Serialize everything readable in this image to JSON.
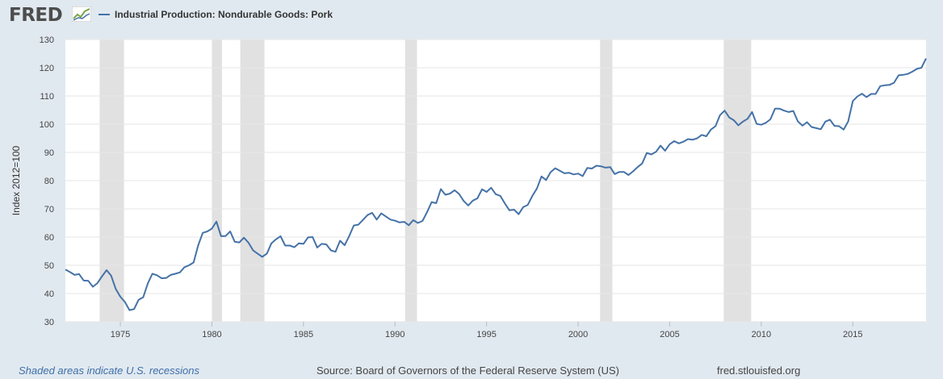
{
  "logo": {
    "text": "FRED"
  },
  "legend": {
    "label": "Industrial Production: Nondurable Goods: Pork",
    "color": "#4572a7"
  },
  "footer": {
    "recession_note": "Shaded areas indicate U.S. recessions",
    "source": "Source: Board of Governors of the Federal Reserve System (US)",
    "url": "fred.stlouisfed.org"
  },
  "chart_data": {
    "type": "line",
    "title": "",
    "xlabel": "",
    "ylabel": "Index 2012=100",
    "xlim": [
      1972.0,
      2019.0
    ],
    "ylim": [
      30,
      130
    ],
    "grid": true,
    "legend_position": "top-left",
    "x_ticks": [
      1975,
      1980,
      1985,
      1990,
      1995,
      2000,
      2005,
      2010,
      2015
    ],
    "y_ticks": [
      30,
      40,
      50,
      60,
      70,
      80,
      90,
      100,
      110,
      120,
      130
    ],
    "recessions": [
      [
        1973.87,
        1975.2
      ],
      [
        1980.0,
        1980.55
      ],
      [
        1981.55,
        1982.87
      ],
      [
        1990.55,
        1991.2
      ],
      [
        2001.2,
        2001.87
      ],
      [
        2007.95,
        2009.45
      ]
    ],
    "series": [
      {
        "color": "#4572a7",
        "x": [
          1972.0,
          1972.25,
          1972.5,
          1972.75,
          1973.0,
          1973.25,
          1973.5,
          1973.75,
          1974.0,
          1974.25,
          1974.5,
          1974.75,
          1975.0,
          1975.25,
          1975.5,
          1975.75,
          1976.0,
          1976.25,
          1976.5,
          1976.75,
          1977.0,
          1977.25,
          1977.5,
          1977.75,
          1978.0,
          1978.25,
          1978.5,
          1978.75,
          1979.0,
          1979.25,
          1979.5,
          1979.75,
          1980.0,
          1980.25,
          1980.5,
          1980.75,
          1981.0,
          1981.25,
          1981.5,
          1981.75,
          1982.0,
          1982.25,
          1982.5,
          1982.75,
          1983.0,
          1983.25,
          1983.5,
          1983.75,
          1984.0,
          1984.25,
          1984.5,
          1984.75,
          1985.0,
          1985.25,
          1985.5,
          1985.75,
          1986.0,
          1986.25,
          1986.5,
          1986.75,
          1987.0,
          1987.25,
          1987.5,
          1987.75,
          1988.0,
          1988.25,
          1988.5,
          1988.75,
          1989.0,
          1989.25,
          1989.5,
          1989.75,
          1990.0,
          1990.25,
          1990.5,
          1990.75,
          1991.0,
          1991.25,
          1991.5,
          1991.75,
          1992.0,
          1992.25,
          1992.5,
          1992.75,
          1993.0,
          1993.25,
          1993.5,
          1993.75,
          1994.0,
          1994.25,
          1994.5,
          1994.75,
          1995.0,
          1995.25,
          1995.5,
          1995.75,
          1996.0,
          1996.25,
          1996.5,
          1996.75,
          1997.0,
          1997.25,
          1997.5,
          1997.75,
          1998.0,
          1998.25,
          1998.5,
          1998.75,
          1999.0,
          1999.25,
          1999.5,
          1999.75,
          2000.0,
          2000.25,
          2000.5,
          2000.75,
          2001.0,
          2001.25,
          2001.5,
          2001.75,
          2002.0,
          2002.25,
          2002.5,
          2002.75,
          2003.0,
          2003.25,
          2003.5,
          2003.75,
          2004.0,
          2004.25,
          2004.5,
          2004.75,
          2005.0,
          2005.25,
          2005.5,
          2005.75,
          2006.0,
          2006.25,
          2006.5,
          2006.75,
          2007.0,
          2007.25,
          2007.5,
          2007.75,
          2008.0,
          2008.25,
          2008.5,
          2008.75,
          2009.0,
          2009.25,
          2009.5,
          2009.75,
          2010.0,
          2010.25,
          2010.5,
          2010.75,
          2011.0,
          2011.25,
          2011.5,
          2011.75,
          2012.0,
          2012.25,
          2012.5,
          2012.75,
          2013.0,
          2013.25,
          2013.5,
          2013.75,
          2014.0,
          2014.25,
          2014.5,
          2014.75,
          2015.0,
          2015.25,
          2015.5,
          2015.75,
          2016.0,
          2016.25,
          2016.5,
          2016.75,
          2017.0,
          2017.25,
          2017.5,
          2017.75,
          2018.0,
          2018.25,
          2018.5,
          2018.75,
          2019.0
        ],
        "values": [
          48.5,
          47.6,
          46.6,
          46.9,
          44.6,
          44.5,
          42.4,
          43.7,
          46.1,
          48.3,
          46.3,
          41.6,
          38.9,
          37.0,
          34.1,
          34.5,
          37.8,
          38.7,
          43.6,
          47.0,
          46.5,
          45.4,
          45.5,
          46.6,
          47.0,
          47.5,
          49.3,
          50.0,
          51.0,
          57.0,
          61.5,
          62.0,
          63.0,
          65.5,
          60.3,
          60.4,
          62.0,
          58.3,
          58.1,
          59.8,
          58.0,
          55.3,
          54.1,
          53.0,
          54.1,
          57.8,
          59.2,
          60.3,
          57.0,
          57.0,
          56.4,
          57.8,
          57.6,
          59.9,
          60.0,
          56.3,
          57.6,
          57.4,
          55.3,
          54.8,
          58.7,
          57.1,
          60.4,
          64.1,
          64.4,
          66.1,
          67.8,
          68.6,
          66.2,
          68.4,
          67.3,
          66.2,
          65.8,
          65.2,
          65.4,
          64.2,
          66.0,
          65.0,
          65.7,
          68.8,
          72.4,
          72.0,
          77.0,
          75.0,
          75.4,
          76.6,
          75.3,
          72.8,
          71.2,
          72.9,
          73.7,
          76.9,
          76.0,
          77.5,
          75.2,
          74.6,
          71.9,
          69.5,
          69.7,
          68.1,
          70.6,
          71.4,
          74.6,
          77.2,
          81.5,
          80.2,
          83.0,
          84.4,
          83.5,
          82.6,
          82.8,
          82.2,
          82.5,
          81.6,
          84.5,
          84.3,
          85.3,
          85.1,
          84.6,
          84.8,
          82.3,
          83.1,
          83.1,
          82.0,
          83.3,
          84.8,
          86.1,
          89.8,
          89.3,
          90.2,
          92.4,
          90.6,
          92.9,
          94.0,
          93.2,
          93.8,
          94.7,
          94.5,
          95.0,
          96.2,
          95.7,
          98.1,
          99.3,
          103.2,
          104.8,
          102.4,
          101.4,
          99.6,
          100.9,
          101.9,
          104.3,
          100.1,
          99.8,
          100.5,
          101.7,
          105.5,
          105.5,
          104.8,
          104.3,
          104.7,
          101.0,
          99.5,
          100.7,
          99.0,
          98.6,
          98.2,
          100.9,
          101.6,
          99.4,
          99.3,
          98.1,
          101.0,
          108.2,
          109.8,
          110.8,
          109.6,
          110.7,
          110.7,
          113.5,
          113.8,
          113.9,
          114.7,
          117.3,
          117.5,
          117.8,
          118.6,
          119.6,
          120.0,
          123.3
        ]
      }
    ]
  }
}
